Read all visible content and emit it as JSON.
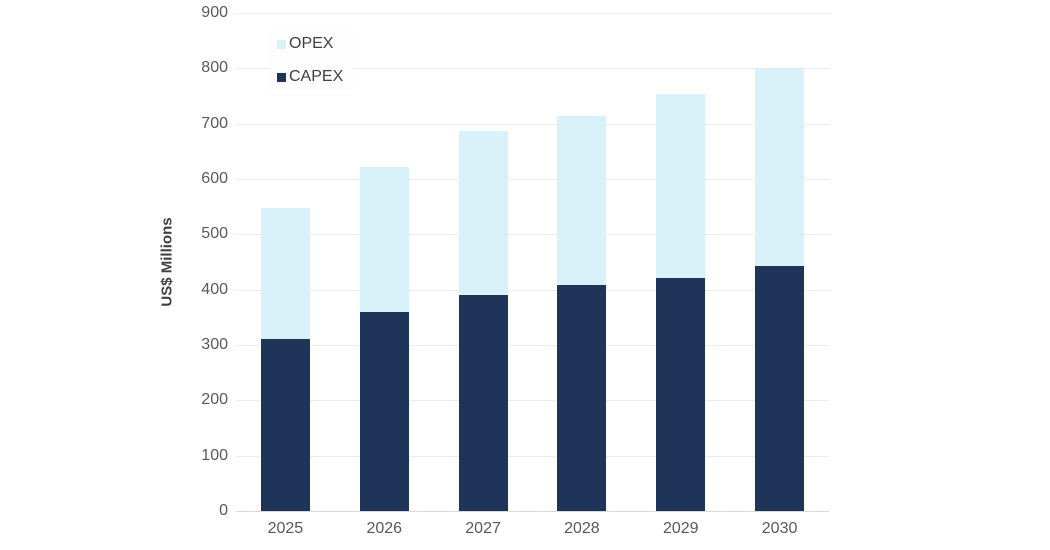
{
  "chart_data": {
    "type": "bar",
    "stacked": true,
    "title": "",
    "xlabel": "",
    "ylabel": "US$ Millions",
    "categories": [
      "2025",
      "2026",
      "2027",
      "2028",
      "2029",
      "2030"
    ],
    "series": [
      {
        "name": "CAPEX",
        "color": "#1f3459",
        "values": [
          311,
          360,
          390,
          408,
          421,
          443
        ]
      },
      {
        "name": "OPEX",
        "color": "#d9f1f9",
        "values": [
          236,
          262,
          297,
          305,
          332,
          357
        ]
      }
    ],
    "totals": [
      547,
      622,
      687,
      713,
      753,
      800
    ],
    "ylim": [
      0,
      900
    ],
    "ytick_step": 100,
    "yticks": [
      "0",
      "100",
      "200",
      "300",
      "400",
      "500",
      "600",
      "700",
      "800",
      "900"
    ],
    "grid": true,
    "legend_order": [
      "OPEX",
      "CAPEX"
    ],
    "legend_position": "top-left-inside",
    "colors": {
      "gridline": "#ececec",
      "axis_line": "#d9d9d9",
      "tick_text": "#595959",
      "axis_title_text": "#404040"
    }
  }
}
